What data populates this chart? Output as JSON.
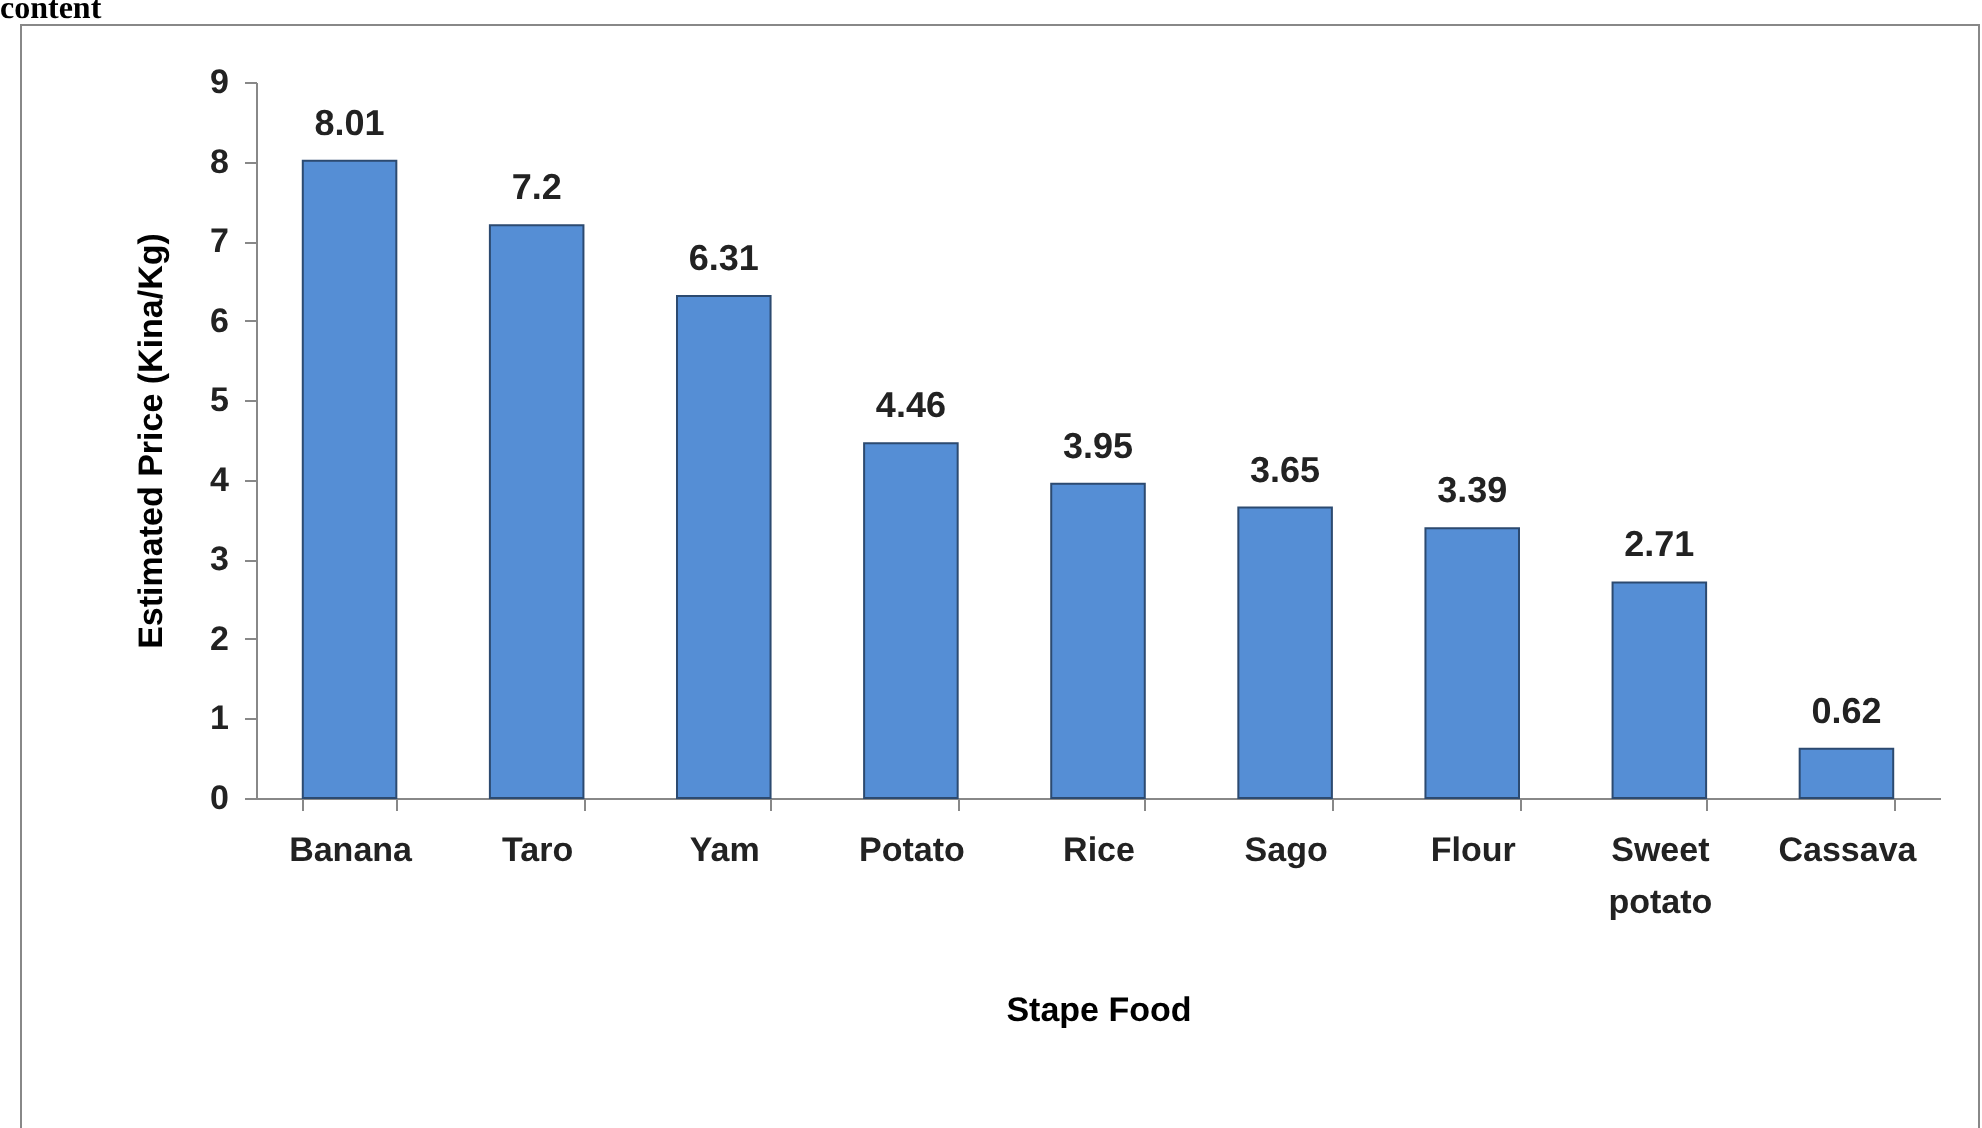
{
  "chart_data": {
    "type": "bar",
    "xlabel": "Stape Food",
    "ylabel": "Estimated Price (Kina/Kg)",
    "categories": [
      "Banana",
      "Taro",
      "Yam",
      "Potato",
      "Rice",
      "Sago",
      "Flour",
      "Sweet potato",
      "Cassava"
    ],
    "values": [
      8.01,
      7.2,
      6.31,
      4.46,
      3.95,
      3.65,
      3.39,
      2.71,
      0.62
    ],
    "color": "#558ed5",
    "ylim": [
      0,
      9
    ],
    "yticks": [
      0,
      1,
      2,
      3,
      4,
      5,
      6,
      7,
      8,
      9
    ],
    "grid": false,
    "data_labels": true,
    "annotations": [
      "content"
    ]
  }
}
